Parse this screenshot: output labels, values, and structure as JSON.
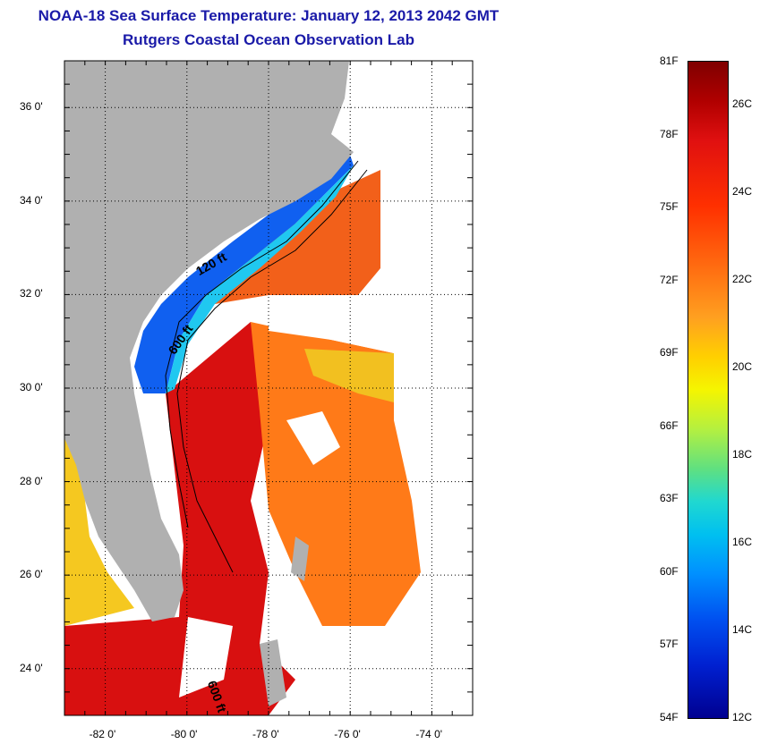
{
  "title_line1": "NOAA-18 Sea Surface Temperature:  January 12, 2013 2042 GMT",
  "title_line2": "Rutgers Coastal Ocean Observation Lab",
  "colors": {
    "title": "#1a1aa8",
    "land": "#b0b0b0",
    "warm": "#d81010",
    "mid": "#ff7a18",
    "yellow": "#f2c020",
    "cold": "#1060f0",
    "cyan": "#20c8f0"
  },
  "map": {
    "lon_range": [
      -83,
      -73
    ],
    "lat_range": [
      23,
      37
    ],
    "lon_ticks": [
      {
        "value": -82,
        "label": "-82 0'"
      },
      {
        "value": -80,
        "label": "-80 0'"
      },
      {
        "value": -78,
        "label": "-78 0'"
      },
      {
        "value": -76,
        "label": "-76 0'"
      },
      {
        "value": -74,
        "label": "-74 0'"
      }
    ],
    "lat_ticks": [
      {
        "value": 36,
        "label": "36 0'"
      },
      {
        "value": 34,
        "label": "34 0'"
      },
      {
        "value": 32,
        "label": "32 0'"
      },
      {
        "value": 30,
        "label": "30 0'"
      },
      {
        "value": 28,
        "label": "28 0'"
      },
      {
        "value": 26,
        "label": "26 0'"
      },
      {
        "value": 24,
        "label": "24 0'"
      }
    ],
    "contour_labels": [
      {
        "text": "120 ft",
        "lon": -79.7,
        "lat": 32.4,
        "rotate": -30
      },
      {
        "text": "600 ft",
        "lon": -80.3,
        "lat": 30.7,
        "rotate": -55
      },
      {
        "text": "600 ft",
        "lon": -79.5,
        "lat": 23.7,
        "rotate": 70
      }
    ]
  },
  "colorbar": {
    "fahrenheit": [
      "81F",
      "78F",
      "75F",
      "72F",
      "69F",
      "66F",
      "63F",
      "60F",
      "57F",
      "54F"
    ],
    "celsius": [
      "26C",
      "24C",
      "22C",
      "20C",
      "18C",
      "16C",
      "14C",
      "12C"
    ]
  }
}
